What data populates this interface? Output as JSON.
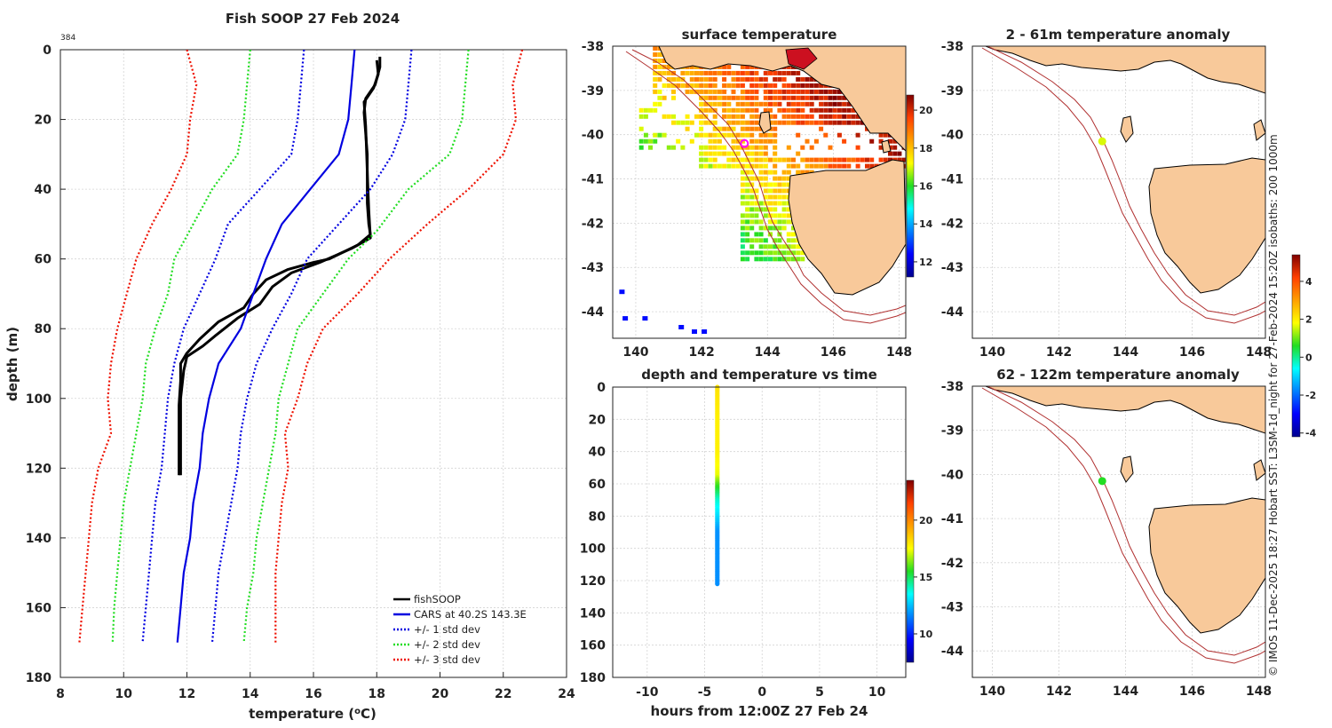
{
  "colors": {
    "fish": "#000000",
    "cars": "#0000e0",
    "sd1": "#0000e0",
    "sd2": "#22dd22",
    "sd3": "#ee1100",
    "land": "#f8c99a",
    "isobath": "#b03030",
    "marker": "#ff00ff"
  },
  "chart_data": [
    {
      "id": "profile",
      "type": "line",
      "title": "Fish SOOP 27 Feb 2024",
      "corner_label": "384",
      "xlabel": "temperature (",
      "xlabel_sup": "o",
      "xlabel_tail": "C)",
      "ylabel": "depth (m)",
      "xlim": [
        8,
        24
      ],
      "ylim": [
        180,
        0
      ],
      "xticks": [
        "8",
        "10",
        "12",
        "14",
        "16",
        "18",
        "20",
        "22",
        "24"
      ],
      "yticks": [
        "0",
        "20",
        "40",
        "60",
        "80",
        "100",
        "120",
        "140",
        "160",
        "180"
      ],
      "legend": [
        "fishSOOP",
        "CARS at 40.2S 143.3E",
        "+/- 1 std dev",
        "+/- 2 std dev",
        "+/- 3 std dev"
      ],
      "series": [
        {
          "name": "fishSOOP",
          "style": "fish",
          "points": [
            [
              18.1,
              2
            ],
            [
              18.1,
              5
            ],
            [
              17.95,
              10
            ],
            [
              17.65,
              14
            ],
            [
              17.6,
              18
            ],
            [
              17.7,
              30
            ],
            [
              17.7,
              44
            ],
            [
              17.75,
              50
            ],
            [
              17.8,
              53
            ],
            [
              17.4,
              56
            ],
            [
              16.5,
              60
            ],
            [
              16.0,
              61
            ],
            [
              15.2,
              63
            ],
            [
              14.5,
              66
            ],
            [
              14.1,
              70
            ],
            [
              13.8,
              74
            ],
            [
              13.0,
              78
            ],
            [
              12.4,
              83
            ],
            [
              12.0,
              87
            ],
            [
              11.8,
              90
            ],
            [
              11.8,
              95
            ],
            [
              11.75,
              102
            ],
            [
              11.75,
              110
            ],
            [
              11.75,
              118
            ],
            [
              11.75,
              122
            ]
          ]
        },
        {
          "name": "fishSOOP",
          "style": "fish",
          "points": [
            [
              18.0,
              3
            ],
            [
              18.05,
              7
            ],
            [
              17.9,
              11
            ],
            [
              17.6,
              15
            ],
            [
              17.65,
              22
            ],
            [
              17.7,
              35
            ],
            [
              17.75,
              46
            ],
            [
              17.8,
              54
            ],
            [
              17.2,
              57
            ],
            [
              16.2,
              61
            ],
            [
              15.3,
              64
            ],
            [
              14.7,
              68
            ],
            [
              14.3,
              73
            ],
            [
              13.6,
              77
            ],
            [
              12.9,
              82
            ],
            [
              12.5,
              85
            ],
            [
              12.0,
              88
            ],
            [
              11.9,
              92
            ],
            [
              11.8,
              100
            ],
            [
              11.8,
              108
            ],
            [
              11.8,
              116
            ],
            [
              11.8,
              122
            ]
          ]
        },
        {
          "name": "CARS",
          "style": "cars",
          "points": [
            [
              17.3,
              0
            ],
            [
              17.2,
              10
            ],
            [
              17.1,
              20
            ],
            [
              16.8,
              30
            ],
            [
              15.9,
              40
            ],
            [
              15.0,
              50
            ],
            [
              14.5,
              60
            ],
            [
              14.1,
              70
            ],
            [
              13.7,
              80
            ],
            [
              13.0,
              90
            ],
            [
              12.7,
              100
            ],
            [
              12.5,
              110
            ],
            [
              12.4,
              120
            ],
            [
              12.2,
              130
            ],
            [
              12.1,
              140
            ],
            [
              11.9,
              150
            ],
            [
              11.8,
              160
            ],
            [
              11.7,
              170
            ]
          ]
        },
        {
          "name": "+1 std",
          "style": "sd1",
          "points": [
            [
              19.1,
              0
            ],
            [
              19.0,
              10
            ],
            [
              18.9,
              20
            ],
            [
              18.5,
              30
            ],
            [
              17.8,
              40
            ],
            [
              16.8,
              50
            ],
            [
              15.8,
              60
            ],
            [
              15.3,
              70
            ],
            [
              14.7,
              80
            ],
            [
              14.2,
              90
            ],
            [
              13.9,
              100
            ],
            [
              13.7,
              110
            ],
            [
              13.6,
              120
            ],
            [
              13.4,
              130
            ],
            [
              13.2,
              140
            ],
            [
              13.0,
              150
            ],
            [
              12.9,
              160
            ],
            [
              12.8,
              170
            ]
          ]
        },
        {
          "name": "-1 std",
          "style": "sd1",
          "points": [
            [
              15.7,
              0
            ],
            [
              15.6,
              10
            ],
            [
              15.5,
              20
            ],
            [
              15.3,
              30
            ],
            [
              14.3,
              40
            ],
            [
              13.3,
              50
            ],
            [
              12.9,
              60
            ],
            [
              12.4,
              70
            ],
            [
              11.9,
              80
            ],
            [
              11.6,
              90
            ],
            [
              11.4,
              100
            ],
            [
              11.3,
              110
            ],
            [
              11.2,
              120
            ],
            [
              11.0,
              130
            ],
            [
              10.9,
              140
            ],
            [
              10.8,
              150
            ],
            [
              10.7,
              160
            ],
            [
              10.6,
              170
            ]
          ]
        },
        {
          "name": "+2 std",
          "style": "sd2",
          "points": [
            [
              20.9,
              0
            ],
            [
              20.8,
              10
            ],
            [
              20.7,
              20
            ],
            [
              20.3,
              30
            ],
            [
              19.0,
              40
            ],
            [
              18.0,
              52
            ],
            [
              17.1,
              60
            ],
            [
              16.3,
              70
            ],
            [
              15.5,
              80
            ],
            [
              15.2,
              90
            ],
            [
              14.9,
              100
            ],
            [
              14.8,
              110
            ],
            [
              14.6,
              120
            ],
            [
              14.4,
              130
            ],
            [
              14.2,
              140
            ],
            [
              14.1,
              150
            ],
            [
              13.9,
              160
            ],
            [
              13.8,
              170
            ]
          ]
        },
        {
          "name": "-2 std",
          "style": "sd2",
          "points": [
            [
              14.0,
              0
            ],
            [
              13.9,
              10
            ],
            [
              13.8,
              20
            ],
            [
              13.6,
              30
            ],
            [
              12.8,
              40
            ],
            [
              12.2,
              50
            ],
            [
              11.6,
              60
            ],
            [
              11.4,
              70
            ],
            [
              11.0,
              80
            ],
            [
              10.7,
              90
            ],
            [
              10.6,
              100
            ],
            [
              10.4,
              110
            ],
            [
              10.2,
              120
            ],
            [
              10.0,
              130
            ],
            [
              9.9,
              140
            ],
            [
              9.8,
              150
            ],
            [
              9.7,
              160
            ],
            [
              9.65,
              170
            ]
          ]
        },
        {
          "name": "+3 std",
          "style": "sd3",
          "points": [
            [
              22.6,
              0
            ],
            [
              22.3,
              10
            ],
            [
              22.4,
              20
            ],
            [
              22.0,
              30
            ],
            [
              20.9,
              40
            ],
            [
              19.6,
              50
            ],
            [
              18.4,
              60
            ],
            [
              17.4,
              70
            ],
            [
              16.3,
              80
            ],
            [
              15.8,
              90
            ],
            [
              15.5,
              100
            ],
            [
              15.1,
              110
            ],
            [
              15.2,
              120
            ],
            [
              15.0,
              130
            ],
            [
              14.9,
              140
            ],
            [
              14.8,
              150
            ],
            [
              14.8,
              160
            ],
            [
              14.8,
              170
            ]
          ]
        },
        {
          "name": "-3 std",
          "style": "sd3",
          "points": [
            [
              12.0,
              0
            ],
            [
              12.3,
              10
            ],
            [
              12.1,
              20
            ],
            [
              12.0,
              30
            ],
            [
              11.5,
              40
            ],
            [
              10.9,
              50
            ],
            [
              10.4,
              60
            ],
            [
              10.1,
              70
            ],
            [
              9.8,
              80
            ],
            [
              9.6,
              90
            ],
            [
              9.5,
              100
            ],
            [
              9.6,
              110
            ],
            [
              9.2,
              120
            ],
            [
              9.0,
              130
            ],
            [
              8.9,
              140
            ],
            [
              8.8,
              150
            ],
            [
              8.7,
              160
            ],
            [
              8.6,
              170
            ]
          ]
        }
      ]
    },
    {
      "id": "sst",
      "type": "heatmap",
      "title": "surface temperature",
      "xlim": [
        139.3,
        148.2
      ],
      "ylim": [
        -44.6,
        -38
      ],
      "xticks": [
        "140",
        "142",
        "144",
        "146",
        "148"
      ],
      "yticks": [
        "-38",
        "-39",
        "-40",
        "-41",
        "-42",
        "-43",
        "-44"
      ],
      "colorbar": {
        "min": 11.2,
        "max": 20.8,
        "ticks": [
          "12",
          "14",
          "16",
          "18",
          "20"
        ]
      },
      "sample_lon": 143.3,
      "sample_lat": -40.2
    },
    {
      "id": "depth_time",
      "type": "scatter",
      "title": "depth and temperature vs time",
      "xlabel": "hours from 12:00Z 27 Feb 24",
      "xlim": [
        -13,
        12.5
      ],
      "ylim": [
        180,
        0
      ],
      "xticks": [
        "-10",
        "-5",
        "0",
        "5",
        "10"
      ],
      "yticks": [
        "0",
        "20",
        "40",
        "60",
        "80",
        "100",
        "120",
        "140",
        "160",
        "180"
      ],
      "hour": -3.9,
      "depth_range": [
        0,
        122
      ],
      "colorbar": {
        "min": 7.5,
        "max": 23.5,
        "ticks": [
          "10",
          "15",
          "20"
        ]
      },
      "temp_profile": [
        [
          0,
          18.1
        ],
        [
          20,
          17.8
        ],
        [
          40,
          17.8
        ],
        [
          55,
          17.3
        ],
        [
          60,
          16.0
        ],
        [
          70,
          14.0
        ],
        [
          80,
          13.0
        ],
        [
          90,
          11.8
        ],
        [
          122,
          11.75
        ]
      ]
    },
    {
      "id": "anom_shallow",
      "type": "scatter",
      "title": "2 - 61m temperature anomaly",
      "xlim": [
        139.4,
        148.2
      ],
      "ylim": [
        -44.6,
        -38
      ],
      "xticks": [
        "140",
        "142",
        "144",
        "146",
        "148"
      ],
      "yticks": [
        "-38",
        "-39",
        "-40",
        "-41",
        "-42",
        "-43",
        "-44"
      ],
      "point": {
        "lon": 143.3,
        "lat": -40.15,
        "anomaly": 1.6
      }
    },
    {
      "id": "anom_deep",
      "type": "scatter",
      "title": "62 - 122m temperature anomaly",
      "xlim": [
        139.4,
        148.2
      ],
      "ylim": [
        -44.6,
        -38
      ],
      "xticks": [
        "140",
        "142",
        "144",
        "146",
        "148"
      ],
      "yticks": [
        "-38",
        "-39",
        "-40",
        "-41",
        "-42",
        "-43",
        "-44"
      ],
      "point": {
        "lon": 143.3,
        "lat": -40.15,
        "anomaly": 0.6
      },
      "colorbar": {
        "min": -4.2,
        "max": 5.4,
        "ticks": [
          "-4",
          "-2",
          "0",
          "2",
          "4"
        ]
      }
    }
  ],
  "side_note": "© IMOS 11-Dec-2025 18:27 Hobart SST: L3SM-1d_night for 27-Feb-2024 15:20Z isobaths: 200  1000m"
}
